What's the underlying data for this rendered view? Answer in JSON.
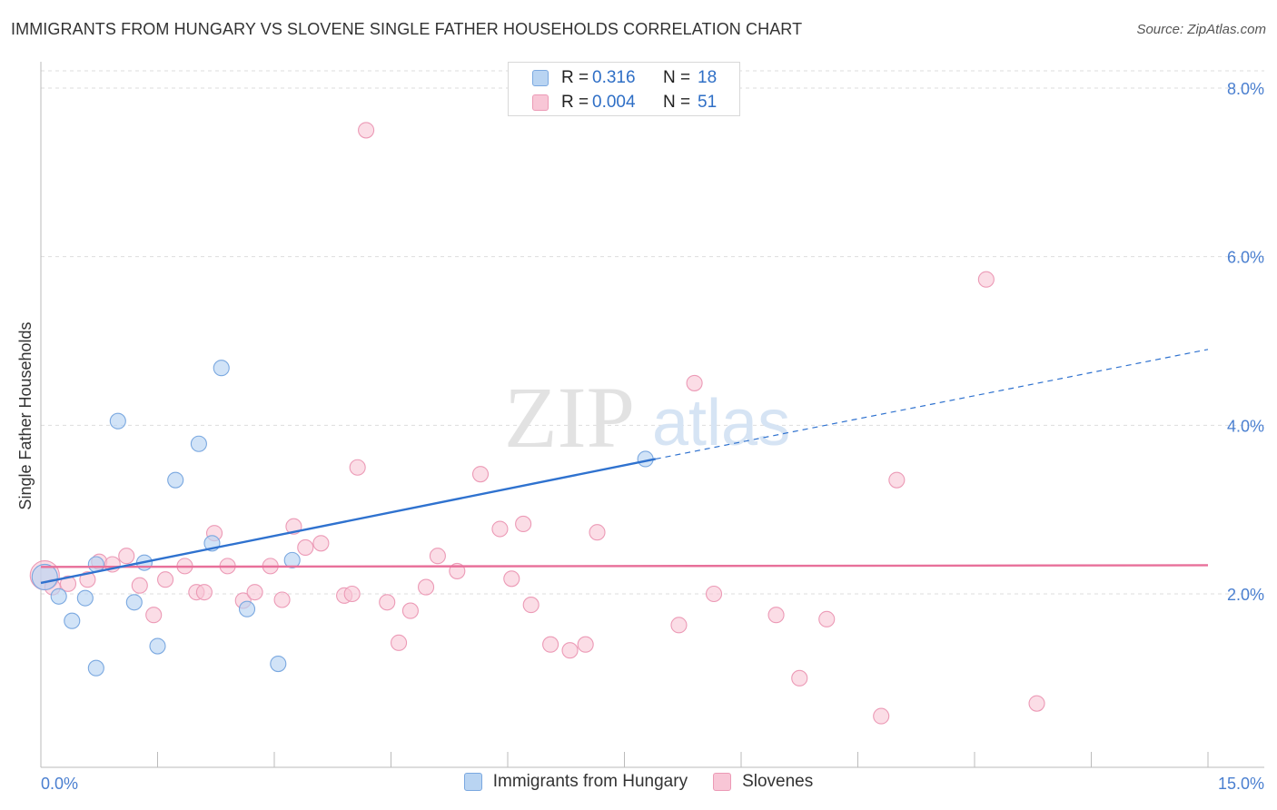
{
  "title": "IMMIGRANTS FROM HUNGARY VS SLOVENE SINGLE FATHER HOUSEHOLDS CORRELATION CHART",
  "source": "Source: ZipAtlas.com",
  "watermark": {
    "zip": "ZIP",
    "atlas": "atlas"
  },
  "colors": {
    "hungary_fill": "#b9d4f2",
    "hungary_stroke": "#7aa8e0",
    "hungary_line": "#2f72cf",
    "slovene_fill": "#f8c6d6",
    "slovene_stroke": "#ec9ab6",
    "slovene_line": "#e8709a",
    "axis_text": "#4a7fd0",
    "grid": "#dddddd"
  },
  "legend_top": {
    "rows": [
      {
        "r_label": "R =",
        "r_value": "0.316",
        "n_label": "N =",
        "n_value": "18"
      },
      {
        "r_label": "R =",
        "r_value": "0.004",
        "n_label": "N =",
        "n_value": "51"
      }
    ]
  },
  "chart_data": {
    "type": "scatter",
    "title": "IMMIGRANTS FROM HUNGARY VS SLOVENE SINGLE FATHER HOUSEHOLDS CORRELATION CHART",
    "xlabel": "",
    "ylabel": "Single Father Households",
    "xlim": [
      0,
      15
    ],
    "ylim": [
      0,
      8.3
    ],
    "x_tick_labels": [
      "0.0%",
      "15.0%"
    ],
    "y_ticks": [
      2,
      4,
      6,
      8
    ],
    "y_tick_labels": [
      "2.0%",
      "4.0%",
      "6.0%",
      "8.0%"
    ],
    "grid": true,
    "legend": "top-center",
    "series": [
      {
        "name": "Immigrants from Hungary",
        "r": 0.316,
        "n": 18,
        "points": [
          [
            0.05,
            2.2
          ],
          [
            0.23,
            1.97
          ],
          [
            0.4,
            1.68
          ],
          [
            0.57,
            1.95
          ],
          [
            0.71,
            1.12
          ],
          [
            0.71,
            2.35
          ],
          [
            0.99,
            4.05
          ],
          [
            1.2,
            1.9
          ],
          [
            1.33,
            2.37
          ],
          [
            1.5,
            1.38
          ],
          [
            1.73,
            3.35
          ],
          [
            2.03,
            3.78
          ],
          [
            2.2,
            2.6
          ],
          [
            2.32,
            4.68
          ],
          [
            2.65,
            1.82
          ],
          [
            3.05,
            1.17
          ],
          [
            3.23,
            2.4
          ],
          [
            7.77,
            3.6
          ]
        ],
        "trend": {
          "x": [
            0,
            7.9
          ],
          "y": [
            2.13,
            3.6
          ]
        },
        "trend_extension": {
          "x": [
            7.9,
            15
          ],
          "y": [
            3.6,
            4.9
          ]
        }
      },
      {
        "name": "Slovenes",
        "r": 0.004,
        "n": 51,
        "points": [
          [
            0.05,
            2.22
          ],
          [
            0.35,
            2.12
          ],
          [
            0.6,
            2.17
          ],
          [
            0.75,
            2.38
          ],
          [
            0.92,
            2.35
          ],
          [
            1.1,
            2.45
          ],
          [
            1.27,
            2.1
          ],
          [
            1.45,
            1.75
          ],
          [
            1.6,
            2.17
          ],
          [
            1.85,
            2.33
          ],
          [
            2.0,
            2.02
          ],
          [
            2.1,
            2.02
          ],
          [
            2.23,
            2.72
          ],
          [
            2.4,
            2.33
          ],
          [
            2.6,
            1.92
          ],
          [
            2.75,
            2.02
          ],
          [
            2.95,
            2.33
          ],
          [
            3.1,
            1.93
          ],
          [
            3.25,
            2.8
          ],
          [
            3.4,
            2.55
          ],
          [
            3.6,
            2.6
          ],
          [
            3.9,
            1.98
          ],
          [
            4.0,
            2.0
          ],
          [
            4.07,
            3.5
          ],
          [
            4.18,
            7.5
          ],
          [
            4.45,
            1.9
          ],
          [
            4.6,
            1.42
          ],
          [
            4.75,
            1.8
          ],
          [
            4.95,
            2.08
          ],
          [
            5.1,
            2.45
          ],
          [
            5.35,
            2.27
          ],
          [
            5.65,
            3.42
          ],
          [
            5.9,
            2.77
          ],
          [
            6.05,
            2.18
          ],
          [
            6.2,
            2.83
          ],
          [
            6.3,
            1.87
          ],
          [
            6.55,
            1.4
          ],
          [
            6.8,
            1.33
          ],
          [
            7.0,
            1.4
          ],
          [
            7.15,
            2.73
          ],
          [
            8.2,
            1.63
          ],
          [
            8.4,
            4.5
          ],
          [
            8.65,
            2.0
          ],
          [
            9.45,
            1.75
          ],
          [
            9.75,
            1.0
          ],
          [
            10.1,
            1.7
          ],
          [
            10.8,
            0.55
          ],
          [
            11.0,
            3.35
          ],
          [
            12.15,
            5.73
          ],
          [
            12.8,
            0.7
          ],
          [
            0.15,
            2.08
          ]
        ],
        "trend": {
          "x": [
            0,
            15
          ],
          "y": [
            2.32,
            2.34
          ]
        }
      }
    ]
  },
  "legend_bottom": {
    "items": [
      {
        "label": "Immigrants from Hungary"
      },
      {
        "label": "Slovenes"
      }
    ]
  }
}
